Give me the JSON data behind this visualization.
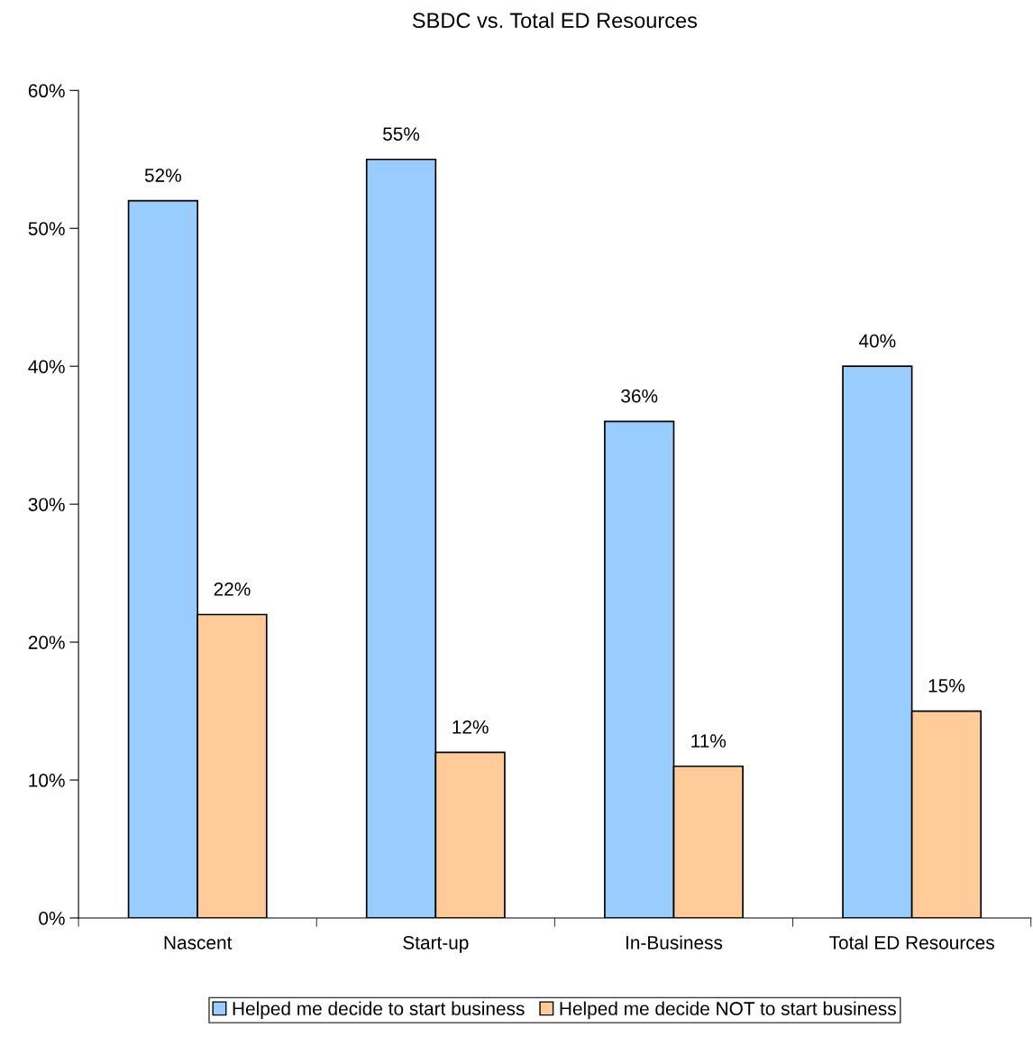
{
  "chart_data": {
    "type": "bar",
    "title": "SBDC vs. Total ED Resources",
    "categories": [
      "Nascent",
      "Start-up",
      "In-Business",
      "Total ED Resources"
    ],
    "series": [
      {
        "name": "Helped me decide to start business",
        "color": "#99ccff",
        "values": [
          52,
          55,
          36,
          40
        ],
        "value_labels": [
          "52%",
          "55%",
          "36%",
          "40%"
        ]
      },
      {
        "name": "Helped me decide NOT to start business",
        "color": "#ffcc99",
        "values": [
          22,
          12,
          11,
          15
        ],
        "value_labels": [
          "22%",
          "12%",
          "11%",
          "15%"
        ]
      }
    ],
    "ylim": [
      0,
      60
    ],
    "yticks": [
      {
        "value": 0,
        "label": "0%"
      },
      {
        "value": 10,
        "label": "10%"
      },
      {
        "value": 20,
        "label": "20%"
      },
      {
        "value": 30,
        "label": "30%"
      },
      {
        "value": 40,
        "label": "40%"
      },
      {
        "value": 50,
        "label": "50%"
      },
      {
        "value": 60,
        "label": "60%"
      }
    ],
    "grid": false,
    "legend": "bottom"
  }
}
